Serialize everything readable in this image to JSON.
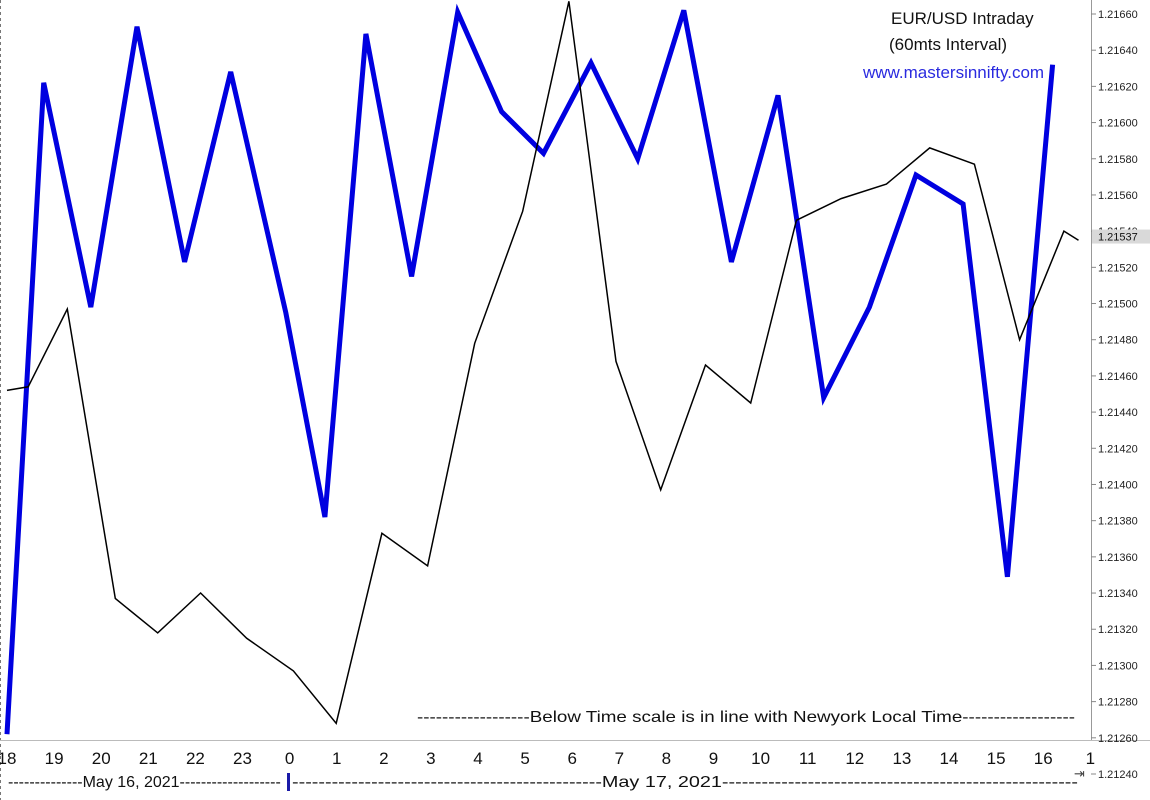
{
  "chart_data": {
    "type": "line",
    "title": "EUR/USD Intraday",
    "subtitle": "(60mts Interval)",
    "website": "www.mastersinnifty.com",
    "annotation": "------------------Below Time scale is in line with Newyork Local Time------------------",
    "x_labels": [
      "18",
      "19",
      "20",
      "21",
      "22",
      "23",
      "0",
      "1",
      "2",
      "3",
      "4",
      "5",
      "6",
      "7",
      "8",
      "9",
      "10",
      "11",
      "12",
      "13",
      "14",
      "15",
      "16",
      "1"
    ],
    "date_labels": [
      {
        "text": "--------------May 16, 2021-------------------"
      },
      {
        "text": "-----------------------------------------------May 17, 2021------------------------------------------------------"
      }
    ],
    "y_ticks": [
      "1.21660",
      "1.21640",
      "1.21620",
      "1.21600",
      "1.21580",
      "1.21560",
      "1.21540",
      "1.21520",
      "1.21500",
      "1.21480",
      "1.21460",
      "1.21440",
      "1.21420",
      "1.21400",
      "1.21380",
      "1.21360",
      "1.21340",
      "1.21320",
      "1.21300",
      "1.21280",
      "1.21260",
      "1.21240"
    ],
    "ylim": [
      1.2124,
      1.2168
    ],
    "last_value_label": "1.21537",
    "series": [
      {
        "color": "#0000e0",
        "points": [
          {
            "x": 0,
            "y": 1.21262
          },
          {
            "x": 0.78,
            "y": 1.21622
          },
          {
            "x": 1.78,
            "y": 1.21498
          },
          {
            "x": 2.76,
            "y": 1.21653
          },
          {
            "x": 3.77,
            "y": 1.21523
          },
          {
            "x": 4.75,
            "y": 1.21628
          },
          {
            "x": 5.92,
            "y": 1.21495
          },
          {
            "x": 6.75,
            "y": 1.21382
          },
          {
            "x": 7.62,
            "y": 1.21649
          },
          {
            "x": 8.59,
            "y": 1.21515
          },
          {
            "x": 9.57,
            "y": 1.21661
          },
          {
            "x": 10.5,
            "y": 1.21606
          },
          {
            "x": 11.39,
            "y": 1.21583
          },
          {
            "x": 12.4,
            "y": 1.21633
          },
          {
            "x": 13.39,
            "y": 1.2158
          },
          {
            "x": 14.37,
            "y": 1.21662
          },
          {
            "x": 15.38,
            "y": 1.21523
          },
          {
            "x": 16.37,
            "y": 1.21615
          },
          {
            "x": 17.34,
            "y": 1.21448
          },
          {
            "x": 18.31,
            "y": 1.21498
          },
          {
            "x": 19.3,
            "y": 1.21571
          },
          {
            "x": 20.3,
            "y": 1.21555
          },
          {
            "x": 21.24,
            "y": 1.21349
          },
          {
            "x": 22.2,
            "y": 1.21632
          }
        ]
      },
      {
        "color": "#000000",
        "points": [
          {
            "x": 0,
            "y": 1.21452
          },
          {
            "x": 0.45,
            "y": 1.21454
          },
          {
            "x": 1.28,
            "y": 1.21497
          },
          {
            "x": 2.3,
            "y": 1.21337
          },
          {
            "x": 3.2,
            "y": 1.21318
          },
          {
            "x": 4.11,
            "y": 1.2134
          },
          {
            "x": 5.09,
            "y": 1.21315
          },
          {
            "x": 6.08,
            "y": 1.21297
          },
          {
            "x": 6.99,
            "y": 1.21268
          },
          {
            "x": 7.96,
            "y": 1.21373
          },
          {
            "x": 8.93,
            "y": 1.21355
          },
          {
            "x": 9.93,
            "y": 1.21478
          },
          {
            "x": 10.95,
            "y": 1.21551
          },
          {
            "x": 11.93,
            "y": 1.21667
          },
          {
            "x": 12.93,
            "y": 1.21468
          },
          {
            "x": 13.88,
            "y": 1.21397
          },
          {
            "x": 14.83,
            "y": 1.21466
          },
          {
            "x": 15.79,
            "y": 1.21445
          },
          {
            "x": 16.76,
            "y": 1.21546
          },
          {
            "x": 17.71,
            "y": 1.21558
          },
          {
            "x": 18.67,
            "y": 1.21566
          },
          {
            "x": 19.59,
            "y": 1.21586
          },
          {
            "x": 20.54,
            "y": 1.21577
          },
          {
            "x": 21.5,
            "y": 1.2148
          },
          {
            "x": 22.44,
            "y": 1.2154
          },
          {
            "x": 22.75,
            "y": 1.21535
          }
        ]
      }
    ],
    "grid": false,
    "legend": "none",
    "colors": {
      "background": "#ffffff",
      "axis": "#999999",
      "price_highlight": "#d9d9d9"
    }
  }
}
